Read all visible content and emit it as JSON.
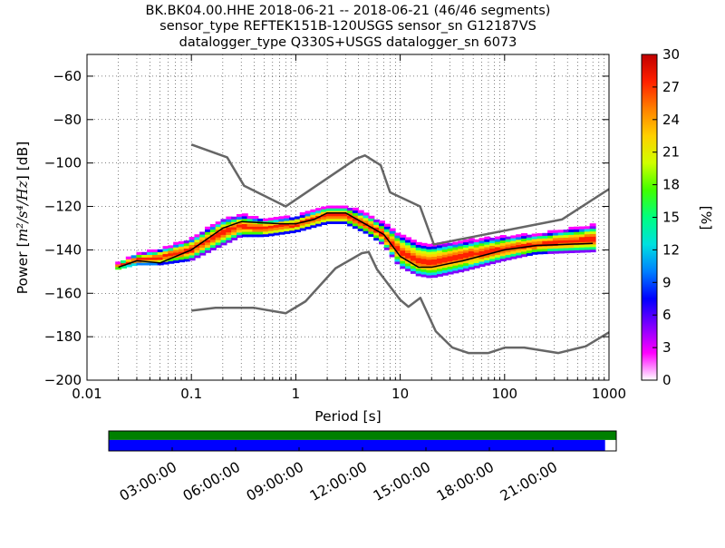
{
  "title_lines": [
    "BK.BK04.00.HHE   2018-06-21 -- 2018-06-21  (46/46 segments)",
    "sensor_type REFTEK151B-120USGS sensor_sn G12187VS",
    "datalogger_type Q330S+USGS datalogger_sn 6073"
  ],
  "chart_data": [
    {
      "type": "heatmap",
      "name": "ppsd",
      "title": "BK.BK04.00.HHE   2018-06-21 -- 2018-06-21  (46/46 segments)",
      "xlabel": "Period [s]",
      "ylabel_text": "Power [",
      "ylabel_math": "m²/s⁴/Hz",
      "ylabel_unit": "] [dB]",
      "xscale": "log",
      "xlim": [
        0.01,
        1000
      ],
      "ylim": [
        -200,
        -50
      ],
      "xticks": [
        0.01,
        0.1,
        1,
        10,
        100,
        1000
      ],
      "xtick_labels": [
        "0.01",
        "0.1",
        "1",
        "10",
        "100",
        "1000"
      ],
      "yticks": [
        -200,
        -180,
        -160,
        -140,
        -120,
        -100,
        -80,
        -60
      ],
      "ytick_labels": [
        "−200",
        "−180",
        "−160",
        "−140",
        "−120",
        "−100",
        "−80",
        "−60"
      ],
      "grid": true,
      "colorbar": {
        "label": "[%]",
        "range": [
          0,
          30
        ],
        "ticks": [
          0,
          3,
          6,
          9,
          12,
          15,
          18,
          21,
          24,
          27,
          30
        ],
        "tick_labels": [
          "0",
          "3",
          "6",
          "9",
          "12",
          "15",
          "18",
          "21",
          "24",
          "27",
          "30"
        ]
      },
      "noise_model_high": [
        [
          0.1,
          -91.5
        ],
        [
          0.22,
          -97.4
        ],
        [
          0.32,
          -110.5
        ],
        [
          0.8,
          -120
        ],
        [
          3.8,
          -98
        ],
        [
          4.6,
          -96.5
        ],
        [
          6.5,
          -101
        ],
        [
          8,
          -113.5
        ],
        [
          15.5,
          -120
        ],
        [
          21,
          -137.5
        ],
        [
          354,
          -126
        ],
        [
          1000,
          -112
        ]
      ],
      "noise_model_low": [
        [
          0.1,
          -168
        ],
        [
          0.17,
          -166.7
        ],
        [
          0.4,
          -166.7
        ],
        [
          0.8,
          -169.2
        ],
        [
          1.24,
          -163.7
        ],
        [
          2.4,
          -148.5
        ],
        [
          4.3,
          -141.5
        ],
        [
          5,
          -141
        ],
        [
          6,
          -149
        ],
        [
          10,
          -163
        ],
        [
          12,
          -166.2
        ],
        [
          15.6,
          -162.1
        ],
        [
          21.9,
          -177.5
        ],
        [
          31.6,
          -185
        ],
        [
          45,
          -187.5
        ],
        [
          70,
          -187.5
        ],
        [
          101,
          -185
        ],
        [
          154,
          -185
        ],
        [
          328,
          -187.5
        ],
        [
          600,
          -184.4
        ],
        [
          1000,
          -178
        ]
      ],
      "mean_curve": [
        [
          0.02,
          -148
        ],
        [
          0.03,
          -145
        ],
        [
          0.05,
          -146
        ],
        [
          0.1,
          -140
        ],
        [
          0.2,
          -130
        ],
        [
          0.3,
          -127
        ],
        [
          0.7,
          -128
        ],
        [
          1,
          -128
        ],
        [
          1.5,
          -126
        ],
        [
          2,
          -123
        ],
        [
          3,
          -123
        ],
        [
          5,
          -129
        ],
        [
          7,
          -133
        ],
        [
          10,
          -143
        ],
        [
          15,
          -148
        ],
        [
          20,
          -148
        ],
        [
          40,
          -145
        ],
        [
          100,
          -140
        ],
        [
          200,
          -138
        ],
        [
          700,
          -137
        ]
      ],
      "density_band": [
        [
          0.02,
          -149,
          -146
        ],
        [
          0.03,
          -147,
          -142
        ],
        [
          0.05,
          -147,
          -140
        ],
        [
          0.1,
          -145,
          -135
        ],
        [
          0.2,
          -138,
          -126
        ],
        [
          0.3,
          -134,
          -124
        ],
        [
          0.5,
          -134,
          -126
        ],
        [
          1,
          -132,
          -125
        ],
        [
          2,
          -128,
          -120
        ],
        [
          3,
          -128,
          -120
        ],
        [
          5,
          -133,
          -124
        ],
        [
          7,
          -138,
          -128
        ],
        [
          10,
          -148,
          -133
        ],
        [
          15,
          -152,
          -137
        ],
        [
          20,
          -153,
          -138
        ],
        [
          40,
          -150,
          -136
        ],
        [
          100,
          -145,
          -134
        ],
        [
          200,
          -142,
          -133
        ],
        [
          700,
          -141,
          -129
        ]
      ]
    },
    {
      "type": "timeline",
      "name": "data-coverage",
      "span_hours": [
        0,
        24
      ],
      "coverage_fraction": 0.978,
      "tick_labels": [
        "03:00:00",
        "06:00:00",
        "09:00:00",
        "12:00:00",
        "15:00:00",
        "18:00:00",
        "21:00:00"
      ],
      "tick_hours": [
        3,
        6,
        9,
        12,
        15,
        18,
        21
      ]
    }
  ],
  "colors": {
    "noise_model": "#666666",
    "mean_curve": "#000000",
    "coverage_top": "#008000",
    "coverage_bottom": "#0000ff",
    "cmap": [
      "#ffffff",
      "#ff00ff",
      "#8000ff",
      "#0000ff",
      "#0080ff",
      "#00e0e0",
      "#00ff80",
      "#40ff00",
      "#d0ff00",
      "#ffd000",
      "#ff8000",
      "#ff2000",
      "#c00000"
    ]
  }
}
